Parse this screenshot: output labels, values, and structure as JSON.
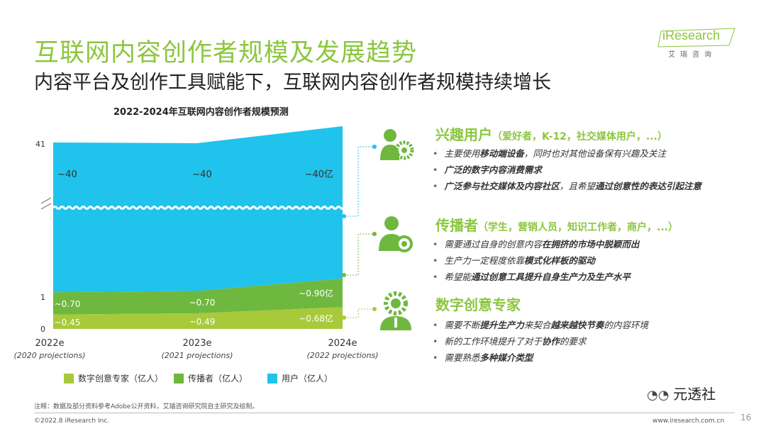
{
  "header": {
    "title": "互联网内容创作者规模及发展趋势",
    "subtitle": "内容平台及创作工具赋能下，互联网内容创作者规模持续增长",
    "logo_text": "iResearch",
    "logo_cn": "艾瑞咨询"
  },
  "chart_data": {
    "type": "area",
    "title": "2022-2024年互联网内容创作者规模预测",
    "categories": [
      "2022e",
      "2023e",
      "2024e"
    ],
    "category_notes": [
      "(2020 projections)",
      "(2021 projections)",
      "(2022 projections)"
    ],
    "y_ticks": [
      "0",
      "1",
      "41"
    ],
    "axis_break": true,
    "series": [
      {
        "name": "数字创意专家（亿人）",
        "values": [
          0.45,
          0.49,
          0.68
        ],
        "labels": [
          "~0.45",
          "~0.49",
          "~0.68亿"
        ],
        "color": "#a8c93a"
      },
      {
        "name": "传播者（亿人）",
        "values": [
          0.7,
          0.7,
          0.9
        ],
        "labels": [
          "~0.70",
          "~0.70",
          "~0.90亿"
        ],
        "color": "#6fb83f"
      },
      {
        "name": "用户（亿人）",
        "values": [
          40,
          40,
          40
        ],
        "labels": [
          "~40",
          "~40",
          "~40亿"
        ],
        "color": "#1fc3ec"
      }
    ],
    "legend_position": "bottom"
  },
  "sections": [
    {
      "icon": "user-gear-icon",
      "title": "兴趣用户",
      "paren": "（爱好者，K-12，社交媒体用户，...）",
      "bullets": [
        {
          "pre": "主要使用",
          "bold": "移动端设备",
          "post": "，同时也对其他设备保有兴趣及关注"
        },
        {
          "pre": "",
          "bold": "广泛的数字内容消费需求",
          "post": ""
        },
        {
          "pre": "",
          "bold": "广泛参与社交媒体及内容社区",
          "post": "，且希望",
          "bold2": "通过创意性的表达引起注意"
        }
      ]
    },
    {
      "icon": "speaker-person-icon",
      "title": "传播者",
      "paren": "（学生，营销人员，知识工作者，商户，...）",
      "bullets": [
        {
          "pre": "需要通过自身的创意内容",
          "bold": "在拥挤的市场中脱颖而出",
          "post": ""
        },
        {
          "pre": "生产力一定程度依靠",
          "bold": "模式化样板的驱动",
          "post": ""
        },
        {
          "pre": "希望能",
          "bold": "通过创意工具提升自身生产力及生产水平",
          "post": ""
        }
      ]
    },
    {
      "icon": "expert-gear-icon",
      "title": "数字创意专家",
      "paren": "",
      "bullets": [
        {
          "pre": "需要不断",
          "bold": "提升生产力",
          "post": "来契合",
          "bold2": "越来越快节奏",
          "post2": "的内容环境"
        },
        {
          "pre": "新的工作环境提升了对于",
          "bold": "协作",
          "post": "的要求"
        },
        {
          "pre": "需要熟悉",
          "bold": "多种媒介类型",
          "post": ""
        }
      ]
    }
  ],
  "footer": {
    "note": "注释：数据及部分资料参考Adobe公开资料，艾瑞咨询研究院自主研究及绘制。",
    "copyright": "©2022.8 iResearch Inc.",
    "website": "www.iresearch.com.cn",
    "page": "16",
    "watermark": "元透社"
  },
  "colors": {
    "accent": "#8cc63f",
    "user": "#1fc3ec",
    "spreader": "#6fb83f",
    "expert": "#a8c93a"
  }
}
